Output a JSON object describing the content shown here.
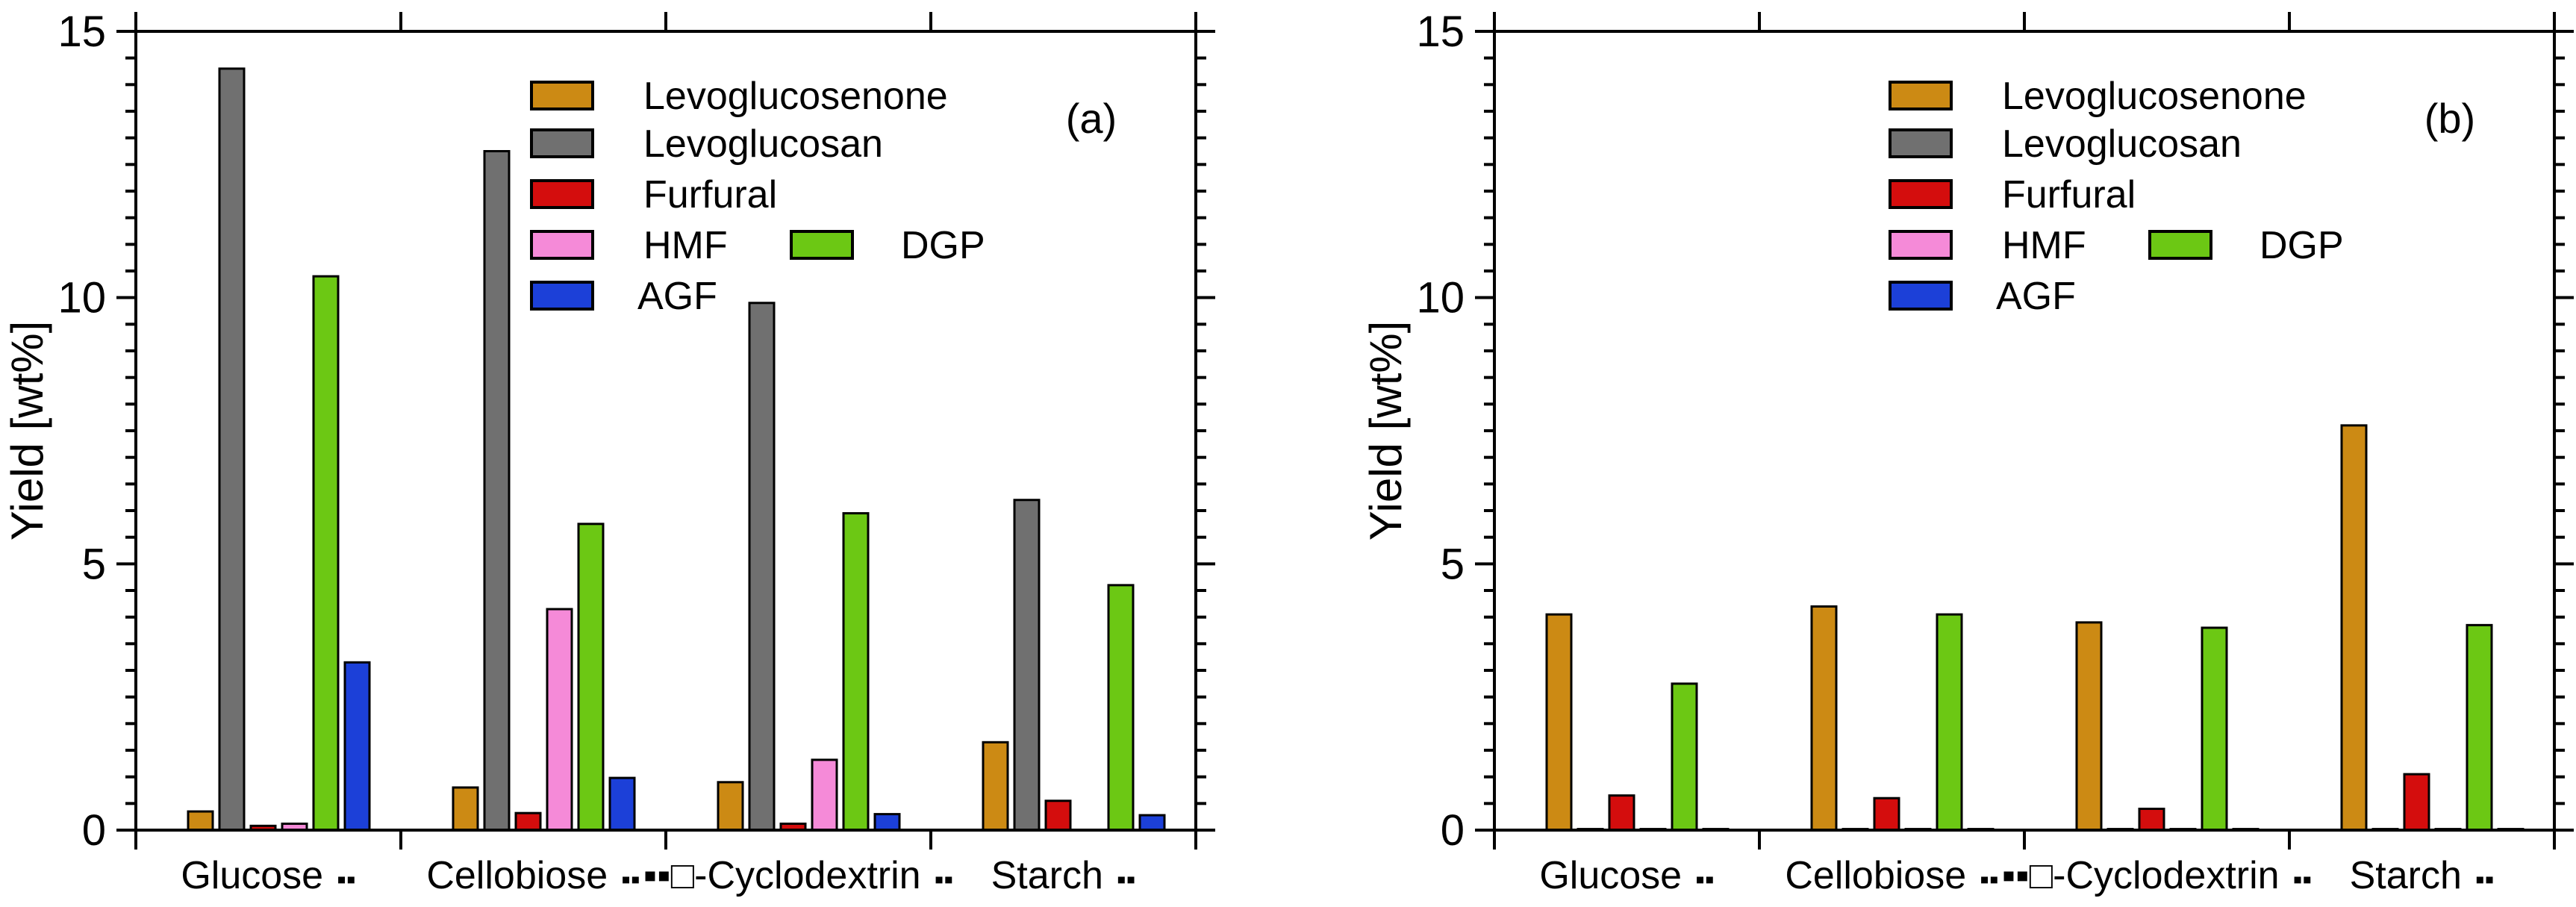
{
  "chart_data": [
    {
      "type": "bar",
      "panel_label": "(a)",
      "ylabel": "Yield [wt%]",
      "xlabel": "",
      "ylim": [
        0,
        15
      ],
      "yticks": [
        0,
        5,
        10,
        15
      ],
      "categories": [
        "Glucose",
        "Cellobiose",
        "-Cyclodextrin",
        "Starch"
      ],
      "category_suffix": "▪▪",
      "category_prefix": [
        "",
        "",
        "▪▪□",
        ""
      ],
      "legend_position": "top-right",
      "series": [
        {
          "name": "Levoglucosenone",
          "color": "#cc8a14",
          "values": [
            0.35,
            0.8,
            0.9,
            1.65
          ]
        },
        {
          "name": "Levoglucosan",
          "color": "#707070",
          "values": [
            14.3,
            12.75,
            9.9,
            6.2
          ]
        },
        {
          "name": "Furfural",
          "color": "#d40d0d",
          "values": [
            0.08,
            0.32,
            0.12,
            0.55
          ]
        },
        {
          "name": "HMF",
          "color": "#f58ad8",
          "values": [
            0.12,
            4.15,
            1.32,
            0.0
          ]
        },
        {
          "name": "DGP",
          "color": "#6cc814",
          "values": [
            10.4,
            5.75,
            5.95,
            4.6
          ]
        },
        {
          "name": "AGF",
          "color": "#1c40d8",
          "values": [
            3.15,
            0.98,
            0.3,
            0.28
          ]
        }
      ]
    },
    {
      "type": "bar",
      "panel_label": "(b)",
      "ylabel": "Yield [wt%]",
      "xlabel": "",
      "ylim": [
        0,
        15
      ],
      "yticks": [
        0,
        5,
        10,
        15
      ],
      "categories": [
        "Glucose",
        "Cellobiose",
        "-Cyclodextrin",
        "Starch"
      ],
      "category_suffix": "▪▪",
      "category_prefix": [
        "",
        "",
        "▪▪□",
        ""
      ],
      "legend_position": "top-right",
      "series": [
        {
          "name": "Levoglucosenone",
          "color": "#cc8a14",
          "values": [
            4.05,
            4.2,
            3.9,
            7.6
          ]
        },
        {
          "name": "Levoglucosan",
          "color": "#707070",
          "values": [
            0.02,
            0.02,
            0.02,
            0.02
          ]
        },
        {
          "name": "Furfural",
          "color": "#d40d0d",
          "values": [
            0.65,
            0.6,
            0.4,
            1.05
          ]
        },
        {
          "name": "HMF",
          "color": "#f58ad8",
          "values": [
            0.02,
            0.02,
            0.02,
            0.02
          ]
        },
        {
          "name": "DGP",
          "color": "#6cc814",
          "values": [
            2.75,
            4.05,
            3.8,
            3.85
          ]
        },
        {
          "name": "AGF",
          "color": "#1c40d8",
          "values": [
            0.02,
            0.02,
            0.02,
            0.02
          ]
        }
      ]
    }
  ]
}
